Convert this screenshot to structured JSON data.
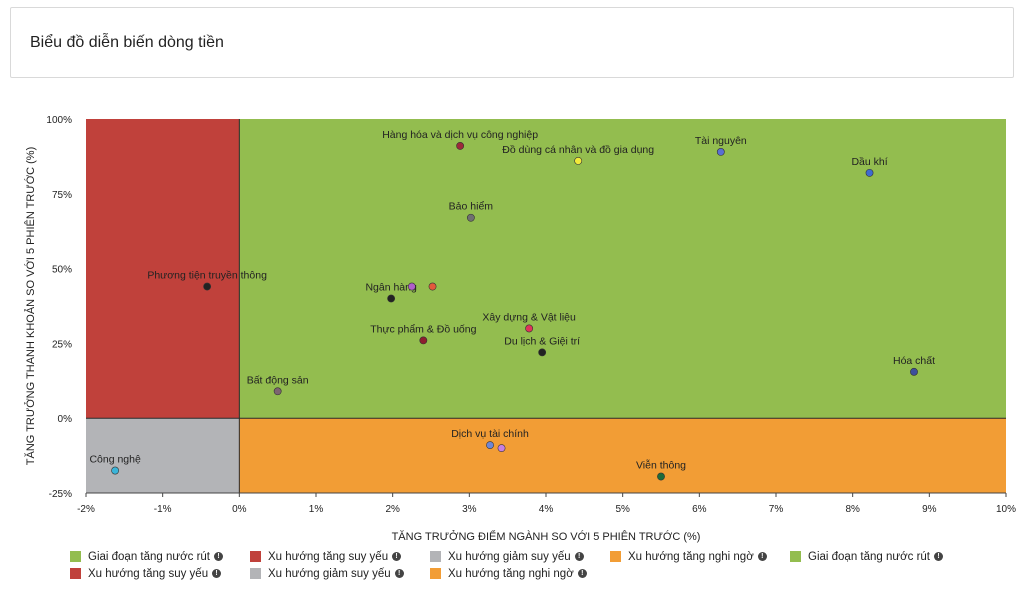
{
  "card": {
    "title": "Biểu đồ diễn biến dòng tiền"
  },
  "chart_data": {
    "type": "scatter",
    "xlabel": "TĂNG TRƯỞNG ĐIỂM NGÀNH SO VỚI 5 PHIÊN TRƯỚC (%)",
    "ylabel": "TĂNG TRƯỞNG THANH KHOẢN SO VỚI 5 PHIÊN TRƯỚC (%)",
    "xlim": [
      -2,
      10
    ],
    "ylim": [
      -25,
      100
    ],
    "x_ticks": [
      "-2%",
      "-1%",
      "0%",
      "1%",
      "2%",
      "3%",
      "4%",
      "5%",
      "6%",
      "7%",
      "8%",
      "9%",
      "10%"
    ],
    "y_ticks": [
      "100%",
      "75%",
      "50%",
      "25%",
      "0%",
      "-25%"
    ],
    "quadrants": [
      {
        "name": "top-left",
        "color": "#c0413b"
      },
      {
        "name": "top-right",
        "color": "#93bd4f"
      },
      {
        "name": "bottom-left",
        "color": "#b3b4b7"
      },
      {
        "name": "bottom-right",
        "color": "#f29d35"
      }
    ],
    "points": [
      {
        "label": "Hàng hóa và dịch vụ công nghiệp",
        "x": 2.88,
        "y": 91,
        "color": "#9c2a3a"
      },
      {
        "label": "Đồ dùng cá nhân và đồ gia dụng",
        "x": 4.42,
        "y": 86,
        "color": "#f2ea3a"
      },
      {
        "label": "Tài nguyên",
        "x": 6.28,
        "y": 89,
        "color": "#5a6fd3"
      },
      {
        "label": "Dầu khí",
        "x": 8.22,
        "y": 82,
        "color": "#3f6bd0"
      },
      {
        "label": "Bảo hiểm",
        "x": 3.02,
        "y": 67,
        "color": "#6f6f70"
      },
      {
        "label": "Phương tiện truyền thông",
        "x": -0.42,
        "y": 44,
        "color": "#222222"
      },
      {
        "label": "Ngân hàng",
        "x": 1.98,
        "y": 40,
        "color": "#222222"
      },
      {
        "label": "",
        "x": 2.25,
        "y": 44,
        "color": "#b05fc8"
      },
      {
        "label": "",
        "x": 2.52,
        "y": 44,
        "color": "#e3593c"
      },
      {
        "label": "Xây dựng & Vật liệu",
        "x": 3.78,
        "y": 30,
        "color": "#e0345a"
      },
      {
        "label": "Thực phẩm & Đồ uống",
        "x": 2.4,
        "y": 26,
        "color": "#8d1f2e"
      },
      {
        "label": "Du lịch & Giệi trí",
        "x": 3.95,
        "y": 22,
        "color": "#222222"
      },
      {
        "label": "Hóa chất",
        "x": 8.8,
        "y": 15.5,
        "color": "#3d4f9c"
      },
      {
        "label": "Bất động sản",
        "x": 0.5,
        "y": 9,
        "color": "#7d6470"
      },
      {
        "label": "Dịch vụ tài chính",
        "x": 3.27,
        "y": -9,
        "color": "#6f86d4"
      },
      {
        "label": "",
        "x": 3.42,
        "y": -10,
        "color": "#c77fe0"
      },
      {
        "label": "Viễn thông",
        "x": 5.5,
        "y": -19.5,
        "color": "#1f6b3a"
      },
      {
        "label": "Công nghệ",
        "x": -1.62,
        "y": -17.5,
        "color": "#3bb4d8"
      }
    ]
  },
  "legend": {
    "rows": [
      [
        {
          "label": "Giai đoạn tăng nước rút",
          "color": "#93bd4f"
        },
        {
          "label": "Xu hướng tăng suy yếu",
          "color": "#c0413b"
        },
        {
          "label": "Xu hướng giảm suy yếu",
          "color": "#b3b4b7"
        },
        {
          "label": "Xu hướng tăng nghi ngờ",
          "color": "#f29d35"
        },
        {
          "label": "Giai đoạn tăng nước rút",
          "color": "#93bd4f"
        }
      ],
      [
        {
          "label": "Xu hướng tăng suy yếu",
          "color": "#c0413b"
        },
        {
          "label": "Xu hướng giảm suy yếu",
          "color": "#b3b4b7"
        },
        {
          "label": "Xu hướng tăng nghi ngờ",
          "color": "#f29d35"
        }
      ]
    ],
    "info_icon": "info-icon"
  }
}
